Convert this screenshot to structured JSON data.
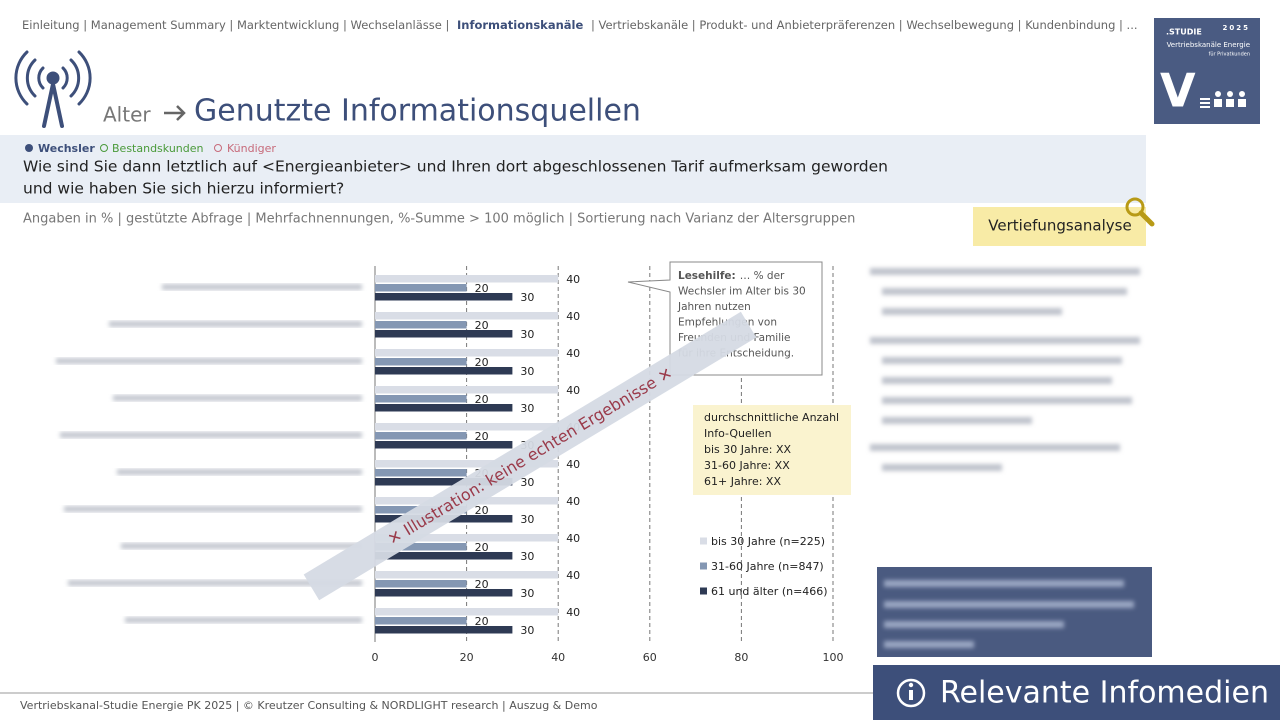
{
  "nav": {
    "before": "Einleitung | Management Summary | Marktentwicklung | Wechselanlässe |",
    "active": "Informationskanäle",
    "after": "| Vertriebskanäle | Produkt- und Anbieterpräferenzen | Wechselbewegung | Kundenbindung | ..."
  },
  "badge": {
    "study": ".STUDIE",
    "year": "2025",
    "name": "Vertriebskanäle Energie",
    "sub": "für Privatkunden",
    "letter": "V"
  },
  "header": {
    "prefix": "Alter",
    "title": "Genutzte Informationsquellen"
  },
  "segments": [
    "Wechsler",
    "Bestandskunden",
    "Kündiger"
  ],
  "question": [
    "Wie sind Sie dann letztlich auf <Energieanbieter> und Ihren dort abgeschlossenen Tarif aufmerksam geworden",
    "und wie haben Sie sich hierzu informiert?"
  ],
  "note": "Angaben in % | gestützte Abfrage | Mehrfachnennungen, %-Summe > 100 möglich | Sortierung nach Varianz der Altersgruppen",
  "button": "Vertiefungsanalyse",
  "chart_data": {
    "type": "bar",
    "orientation": "horizontal",
    "categories": [
      null,
      null,
      null,
      null,
      null,
      null,
      null,
      null,
      null,
      null
    ],
    "series": [
      {
        "name": "bis 30 Jahre (n=225)",
        "color": "#d9dde6",
        "values": [
          40,
          40,
          40,
          40,
          40,
          40,
          40,
          40,
          40,
          40
        ]
      },
      {
        "name": "31-60 Jahre (n=847)",
        "color": "#8497b3",
        "values": [
          20,
          20,
          20,
          20,
          20,
          20,
          20,
          20,
          20,
          20
        ]
      },
      {
        "name": "61 und älter (n=466)",
        "color": "#2e3a54",
        "values": [
          30,
          30,
          30,
          30,
          30,
          30,
          30,
          30,
          30,
          30
        ]
      }
    ],
    "xlim": [
      0,
      100
    ],
    "xticks": [
      0,
      20,
      40,
      60,
      80,
      100
    ],
    "grid": true,
    "lesehilfe": {
      "label": "Lesehilfe:",
      "lines": [
        "… % der",
        "Wechsler im Alter bis 30",
        "Jahren nutzen",
        "Empfehlungen von",
        "Freunden und Familie",
        "für ihre Entscheidung."
      ]
    },
    "info_box": [
      "durchschnittliche Anzahl",
      "Info-Quellen",
      "bis 30 Jahre: XX",
      "31-60 Jahre: XX",
      "61+ Jahre: XX"
    ],
    "watermark": "✕ Illustration: keine echten Ergebnisse ✕"
  },
  "footer": "Vertriebskanal-Studie Energie PK 2025 | © Kreutzer Consulting & NORDLIGHT research | Auszug & Demo",
  "banner": "Relevante Infomedien"
}
